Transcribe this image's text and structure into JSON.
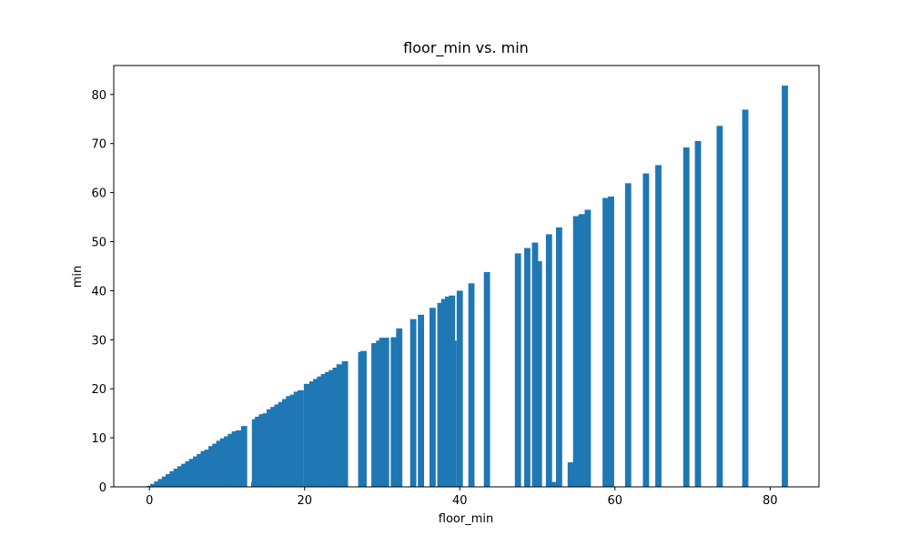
{
  "chart_data": {
    "type": "bar",
    "title": "floor_min vs. min",
    "x_label": "floor_min",
    "y_label": "min",
    "color": "#1f77b4",
    "bar_width": 0.8,
    "x": [
      0,
      0.5,
      1,
      1.5,
      2,
      2.5,
      3,
      3.5,
      4,
      4.5,
      5,
      5.5,
      6,
      6.5,
      7,
      7.5,
      8,
      8.5,
      9,
      9.5,
      10,
      10.5,
      11,
      11.5,
      12.2,
      13.5,
      13.6,
      14,
      14.5,
      15,
      15.5,
      16,
      16.5,
      17,
      17.5,
      18,
      18.5,
      19,
      19.5,
      20.3,
      21,
      21.5,
      22,
      22.5,
      23,
      23.5,
      24,
      24.5,
      25.2,
      27.3,
      27.6,
      29,
      29.6,
      30,
      30.5,
      31.5,
      32.2,
      34,
      35,
      36.5,
      37.5,
      38,
      38.5,
      39,
      39.2,
      40,
      41.5,
      43.5,
      47.5,
      48.7,
      49.7,
      50.2,
      51.5,
      52,
      52.8,
      54.3,
      55,
      55.7,
      56.5,
      58.8,
      59.5,
      61.7,
      64,
      65.6,
      69.2,
      70.7,
      73.5,
      76.8,
      81.9
    ],
    "values": [
      0.2,
      0.6,
      1.1,
      1.6,
      2.1,
      2.6,
      3.2,
      3.7,
      4.2,
      4.7,
      5.2,
      5.7,
      6.2,
      6.7,
      7.3,
      7.6,
      8.3,
      8.8,
      9.4,
      9.9,
      10.3,
      10.8,
      11.3,
      11.5,
      12.4,
      1,
      13.8,
      14.3,
      14.8,
      15,
      15.8,
      16.3,
      16.8,
      17.3,
      17.9,
      18.5,
      18.8,
      19.4,
      19.7,
      21,
      21.5,
      22,
      22.5,
      23,
      23.4,
      23.8,
      24.3,
      25,
      25.6,
      27.5,
      27.7,
      29.3,
      29.8,
      30.4,
      30.4,
      30.5,
      32.3,
      34.2,
      35.1,
      36.5,
      37.5,
      38.3,
      38.8,
      39,
      29.8,
      40,
      41.5,
      43.8,
      47.6,
      48.7,
      49.8,
      46,
      51.5,
      1,
      52.9,
      5,
      55.2,
      55.6,
      56.5,
      58.9,
      59.2,
      61.9,
      63.9,
      65.6,
      69.2,
      70.5,
      73.6,
      76.9,
      81.8
    ],
    "xlim": [
      -4.6,
      86.3
    ],
    "ylim": [
      0,
      85.9
    ],
    "xticks": [
      0,
      20,
      40,
      60,
      80
    ],
    "yticks": [
      0,
      10,
      20,
      30,
      40,
      50,
      60,
      70,
      80
    ],
    "grid": false
  }
}
